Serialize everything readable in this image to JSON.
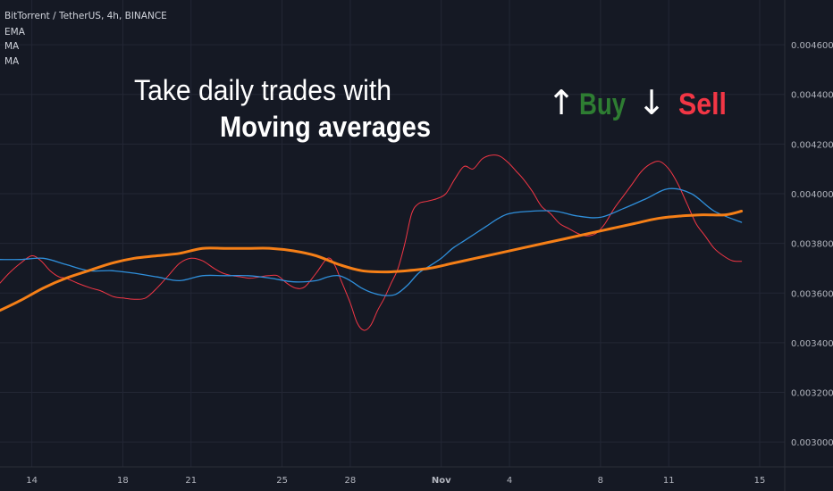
{
  "header": {
    "symbol_line": "BitTorrent / TetherUS, 4h, BINANCE",
    "indicators": [
      "EMA",
      "MA",
      "MA"
    ]
  },
  "overlay": {
    "line1": "Take daily trades with",
    "line2": "Moving averages",
    "buy_label": "Buy",
    "sell_label": "Sell",
    "up_arrow": "↑",
    "down_arrow": "↓",
    "buy_color": "#2e7d32",
    "sell_color": "#f23645"
  },
  "chart_data": {
    "type": "line",
    "x_ticks": [
      {
        "label": "14",
        "day": 14
      },
      {
        "label": "18",
        "day": 18
      },
      {
        "label": "21",
        "day": 21
      },
      {
        "label": "25",
        "day": 25
      },
      {
        "label": "28",
        "day": 28
      },
      {
        "label": "Nov",
        "day": 32
      },
      {
        "label": "4",
        "day": 35
      },
      {
        "label": "8",
        "day": 39
      },
      {
        "label": "11",
        "day": 42
      },
      {
        "label": "15",
        "day": 46
      }
    ],
    "xlim": [
      12.6,
      47.1
    ],
    "y_ticks": [
      "0.004600",
      "0.004400",
      "0.004200",
      "0.004000",
      "0.003800",
      "0.003600",
      "0.003400",
      "0.003200",
      "0.003000"
    ],
    "ylim": [
      0.0029,
      0.00478
    ],
    "grid": true,
    "series": [
      {
        "name": "EMA",
        "color": "#f23645",
        "width": 1,
        "x": [
          12.6,
          13,
          13.5,
          14,
          14.4,
          14.8,
          15.2,
          15.5,
          16,
          16.6,
          17,
          17.6,
          18,
          18.5,
          19,
          19.5,
          20,
          20.5,
          21,
          21.5,
          22,
          22.4,
          22.8,
          23.2,
          23.6,
          24,
          24.4,
          24.8,
          25.2,
          25.6,
          26,
          26.5,
          27,
          27.3,
          27.6,
          28,
          28.3,
          28.6,
          28.9,
          29.2,
          29.5,
          29.8,
          30.1,
          30.4,
          30.7,
          31,
          31.4,
          31.8,
          32.2,
          32.6,
          33,
          33.4,
          33.8,
          34.2,
          34.6,
          35,
          35.3,
          35.6,
          36,
          36.4,
          36.8,
          37.2,
          37.6,
          38,
          38.4,
          38.8,
          39.2,
          39.6,
          40,
          40.4,
          40.8,
          41.2,
          41.6,
          42,
          42.4,
          42.8,
          43.2,
          43.6,
          44,
          44.4,
          44.8,
          45.2
        ],
        "values": [
          0.00364,
          0.00368,
          0.00372,
          0.00375,
          0.00373,
          0.00369,
          0.003665,
          0.00366,
          0.00364,
          0.00362,
          0.00361,
          0.003585,
          0.00358,
          0.003575,
          0.00358,
          0.00362,
          0.00367,
          0.00372,
          0.00374,
          0.00373,
          0.0037,
          0.00368,
          0.00367,
          0.003665,
          0.00366,
          0.003665,
          0.00367,
          0.00367,
          0.00364,
          0.00362,
          0.003625,
          0.00368,
          0.00374,
          0.003715,
          0.00365,
          0.00356,
          0.00348,
          0.00345,
          0.00347,
          0.00353,
          0.00358,
          0.00364,
          0.0037,
          0.0038,
          0.00392,
          0.00396,
          0.00397,
          0.00398,
          0.004,
          0.00406,
          0.00411,
          0.0041,
          0.00414,
          0.004155,
          0.00415,
          0.00412,
          0.00409,
          0.00406,
          0.00401,
          0.00395,
          0.00392,
          0.00388,
          0.00386,
          0.00384,
          0.00383,
          0.00384,
          0.00388,
          0.00394,
          0.00399,
          0.00404,
          0.00409,
          0.00412,
          0.00413,
          0.0041,
          0.00404,
          0.00396,
          0.00388,
          0.00383,
          0.00378,
          0.00375,
          0.00373,
          0.003728
        ]
      },
      {
        "name": "MA",
        "color": "#2f8fdb",
        "width": 1.3,
        "x": [
          12.6,
          13.5,
          14.5,
          15.5,
          16.5,
          17.5,
          18.5,
          19.5,
          20.5,
          21.5,
          22.5,
          23.5,
          24.5,
          25.5,
          26.5,
          27,
          27.5,
          28,
          28.5,
          29,
          29.5,
          30,
          30.5,
          31,
          31.5,
          32,
          32.5,
          33,
          33.5,
          34,
          34.5,
          35,
          36,
          37,
          38,
          39,
          40,
          41,
          42,
          43,
          44,
          45.2
        ],
        "values": [
          0.003735,
          0.003735,
          0.00374,
          0.003715,
          0.00369,
          0.00369,
          0.00368,
          0.003665,
          0.00365,
          0.00367,
          0.00367,
          0.00367,
          0.00366,
          0.003645,
          0.00365,
          0.003665,
          0.00367,
          0.00365,
          0.00362,
          0.0036,
          0.00359,
          0.003595,
          0.00363,
          0.00368,
          0.00371,
          0.00374,
          0.00378,
          0.00381,
          0.00384,
          0.00387,
          0.0039,
          0.00392,
          0.00393,
          0.00393,
          0.00391,
          0.003905,
          0.00394,
          0.00398,
          0.00402,
          0.004,
          0.00393,
          0.003885
        ]
      },
      {
        "name": "MA",
        "color": "#f57f17",
        "width": 3,
        "x": [
          12.6,
          13.5,
          14.5,
          15.5,
          16.5,
          17.5,
          18.5,
          19.5,
          20.5,
          21.5,
          22.5,
          23.5,
          24.5,
          25.5,
          26.5,
          27.5,
          28.5,
          29.5,
          30.5,
          31.5,
          32.5,
          33.5,
          34.5,
          35.5,
          36.5,
          37.5,
          38.5,
          39.5,
          40.5,
          41.5,
          42.5,
          43.5,
          44.5,
          45.2
        ],
        "values": [
          0.00353,
          0.00357,
          0.00362,
          0.00366,
          0.00369,
          0.00372,
          0.00374,
          0.00375,
          0.00376,
          0.00378,
          0.00378,
          0.00378,
          0.00378,
          0.00377,
          0.00375,
          0.003715,
          0.00369,
          0.003685,
          0.00369,
          0.0037,
          0.00372,
          0.00374,
          0.00376,
          0.00378,
          0.0038,
          0.00382,
          0.00384,
          0.00386,
          0.00388,
          0.0039,
          0.00391,
          0.003915,
          0.003915,
          0.00393
        ]
      }
    ]
  }
}
